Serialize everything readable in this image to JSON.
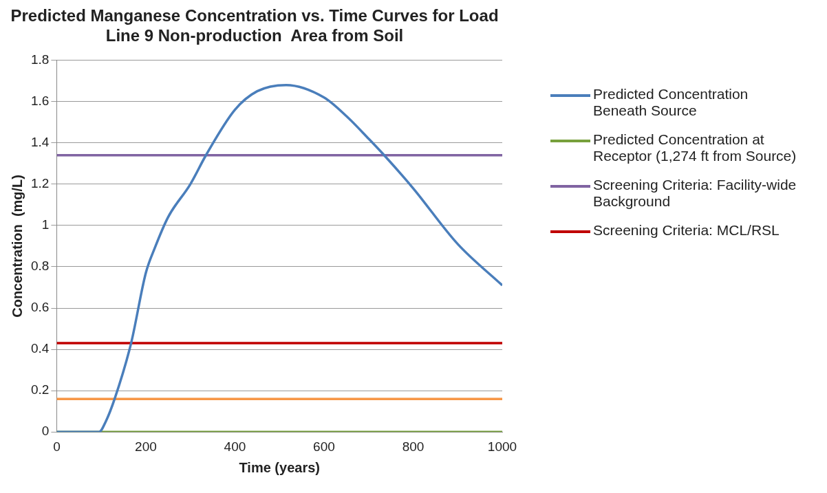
{
  "chart_data": {
    "type": "line",
    "title": [
      "Predicted Manganese Concentration vs. Time Curves for Load",
      "Line 9 Non-production  Area from Soil"
    ],
    "xlabel": "Time (years)",
    "ylabel": "Concentration  (mg/L)",
    "xlim": [
      0,
      1000
    ],
    "xticks": [
      0,
      200,
      400,
      600,
      800,
      1000
    ],
    "ylim": [
      0,
      1.8
    ],
    "yticks": [
      0,
      0.2,
      0.4,
      0.6,
      0.8,
      1,
      1.2,
      1.4,
      1.6,
      1.8
    ],
    "grid": "y",
    "legend": "right",
    "marker": "none",
    "line_style": "solid",
    "series": [
      {
        "name": "Predicted Concentration Beneath Source",
        "color": "#4a7ebb",
        "x": [
          0,
          95,
          110,
          130,
          167,
          200,
          220,
          250,
          300,
          335,
          400,
          450,
          515,
          600,
          650,
          700,
          735,
          800,
          900,
          1000
        ],
        "values": [
          0,
          0,
          0.05,
          0.16,
          0.43,
          0.77,
          0.89,
          1.04,
          1.2,
          1.34,
          1.56,
          1.65,
          1.68,
          1.62,
          1.53,
          1.42,
          1.34,
          1.18,
          0.91,
          0.71
        ]
      },
      {
        "name": "Predicted Concentration at Receptor (1,274 ft from Source)",
        "color": "#77a03c",
        "x": [
          0,
          1000
        ],
        "values": [
          0,
          0
        ]
      },
      {
        "name": "Screening Criteria: Facility-wide Background",
        "color": "#8064a2",
        "x": [
          0,
          1000
        ],
        "values": [
          1.34,
          1.34
        ]
      },
      {
        "name": "Screening Criteria: MCL/RSL",
        "color": "#c00000",
        "x": [
          0,
          1000
        ],
        "values": [
          0.43,
          0.43
        ]
      },
      {
        "color": "#f79646",
        "x": [
          0,
          1000
        ],
        "values": [
          0.16,
          0.16
        ]
      }
    ]
  }
}
